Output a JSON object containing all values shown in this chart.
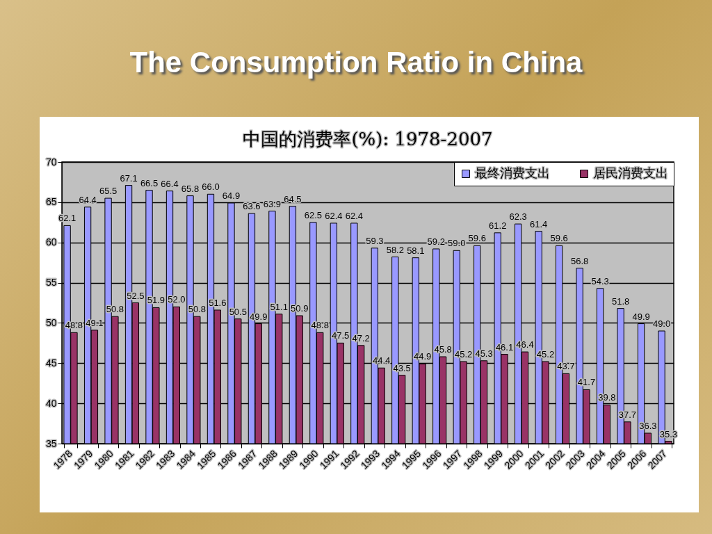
{
  "chart_data": {
    "type": "bar",
    "title": "The Consumption Ratio in China",
    "subtitle": "中国的消费率(%): 1978-2007",
    "categories": [
      "1978",
      "1979",
      "1980",
      "1981",
      "1982",
      "1983",
      "1984",
      "1985",
      "1986",
      "1987",
      "1988",
      "1989",
      "1990",
      "1991",
      "1992",
      "1993",
      "1994",
      "1995",
      "1996",
      "1997",
      "1998",
      "1999",
      "2000",
      "2001",
      "2002",
      "2003",
      "2004",
      "2005",
      "2006",
      "2007"
    ],
    "series": [
      {
        "name": "最终消费支出",
        "color": "#9999ff",
        "values": [
          62.1,
          64.4,
          65.5,
          67.1,
          66.5,
          66.4,
          65.8,
          66.0,
          64.9,
          63.6,
          63.9,
          64.5,
          62.5,
          62.4,
          62.4,
          59.3,
          58.2,
          58.1,
          59.2,
          59.0,
          59.6,
          61.2,
          62.3,
          61.4,
          59.6,
          56.8,
          54.3,
          51.8,
          49.9,
          49.0
        ],
        "value_labels": [
          "62.1",
          "64.4",
          "65.5",
          "67.1",
          "66.5",
          "66.4",
          "65.8",
          "66.0",
          "64.9",
          "63.6",
          "63.9",
          "64.5",
          "62.5",
          "62.4",
          "62.4",
          "59.3",
          "58.2",
          "58.1",
          "59.2",
          "59.0",
          "59.6",
          "61.2",
          "62.3",
          "61.4",
          "59.6",
          "56.8",
          "54.3",
          "51.8",
          "49.9",
          "49.0"
        ]
      },
      {
        "name": "居民消费支出",
        "color": "#993366",
        "values": [
          48.8,
          49.1,
          50.8,
          52.5,
          51.9,
          52.0,
          50.8,
          51.6,
          50.5,
          49.9,
          51.1,
          50.9,
          48.8,
          47.5,
          47.2,
          44.4,
          43.5,
          44.9,
          45.8,
          45.2,
          45.3,
          46.1,
          46.4,
          45.2,
          43.7,
          41.7,
          39.8,
          37.7,
          36.3,
          35.3
        ],
        "value_labels": [
          "48.8",
          "49.1",
          "50.8",
          "52.5",
          "51.9",
          "52.0",
          "50.8",
          "51.6",
          "50.5",
          "49.9",
          "51.1",
          "50.9",
          "48.8",
          "47.5",
          "47.2",
          "44.4",
          "43.5",
          "44.9",
          "45.8",
          "45.2",
          "45.3",
          "46.1",
          "46.4",
          "45.2",
          "43.7",
          "41.7",
          "39.8",
          "37.7",
          "36.3",
          "35.3"
        ]
      }
    ],
    "ylim": [
      35,
      70
    ],
    "yticks": [
      35,
      40,
      45,
      50,
      55,
      60,
      65,
      70
    ],
    "grid": "y",
    "legend": "top right"
  }
}
